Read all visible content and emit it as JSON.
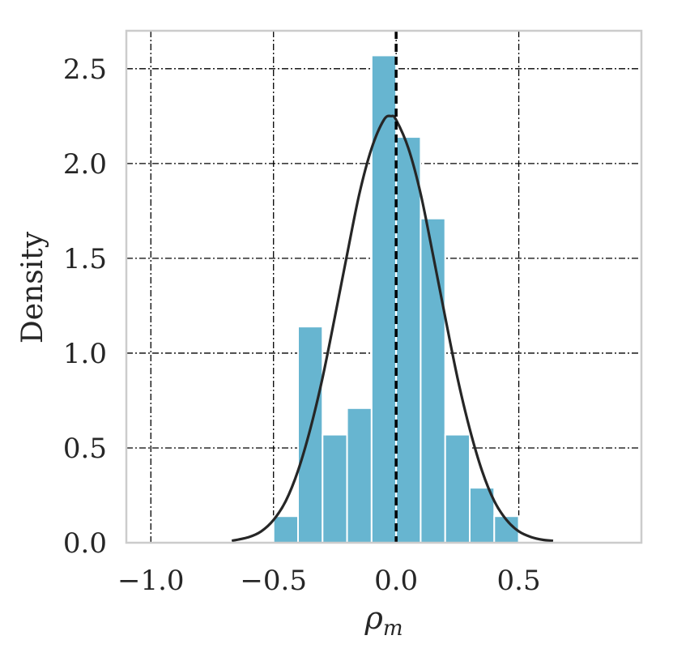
{
  "chart_data": {
    "type": "bar",
    "xlabel": "ρm",
    "xlabel_base": "ρ",
    "xlabel_sub": "m",
    "ylabel": "Density",
    "xlim": [
      -1.1,
      1.0
    ],
    "ylim": [
      0,
      2.7
    ],
    "xticks": [
      -1.0,
      -0.5,
      0.0,
      0.5
    ],
    "xtick_labels": [
      "−1.0",
      "−0.5",
      "0.0",
      "0.5"
    ],
    "yticks": [
      0.0,
      0.5,
      1.0,
      1.5,
      2.0,
      2.5
    ],
    "ytick_labels": [
      "0.0",
      "0.5",
      "1.0",
      "1.5",
      "2.0",
      "2.5"
    ],
    "grid": true,
    "bar_color": "#67b5d0",
    "histogram": {
      "bin_edges": [
        -0.5,
        -0.4,
        -0.3,
        -0.2,
        -0.1,
        0.0,
        0.1,
        0.2,
        0.3,
        0.4,
        0.5
      ],
      "density": [
        0.14,
        1.14,
        0.57,
        0.71,
        2.57,
        2.14,
        1.71,
        0.57,
        0.29,
        0.14
      ]
    },
    "kde": {
      "x": [
        -0.67,
        -0.6,
        -0.55,
        -0.5,
        -0.45,
        -0.4,
        -0.35,
        -0.3,
        -0.25,
        -0.2,
        -0.15,
        -0.1,
        -0.05,
        -0.02,
        0.0,
        0.05,
        0.1,
        0.15,
        0.2,
        0.25,
        0.3,
        0.35,
        0.4,
        0.45,
        0.5,
        0.55,
        0.6,
        0.64
      ],
      "y": [
        0.01,
        0.03,
        0.06,
        0.12,
        0.22,
        0.38,
        0.6,
        0.87,
        1.19,
        1.52,
        1.84,
        2.08,
        2.23,
        2.25,
        2.23,
        2.08,
        1.84,
        1.52,
        1.19,
        0.87,
        0.6,
        0.38,
        0.22,
        0.12,
        0.06,
        0.03,
        0.015,
        0.01
      ]
    },
    "reference_line_x": 0.0
  }
}
